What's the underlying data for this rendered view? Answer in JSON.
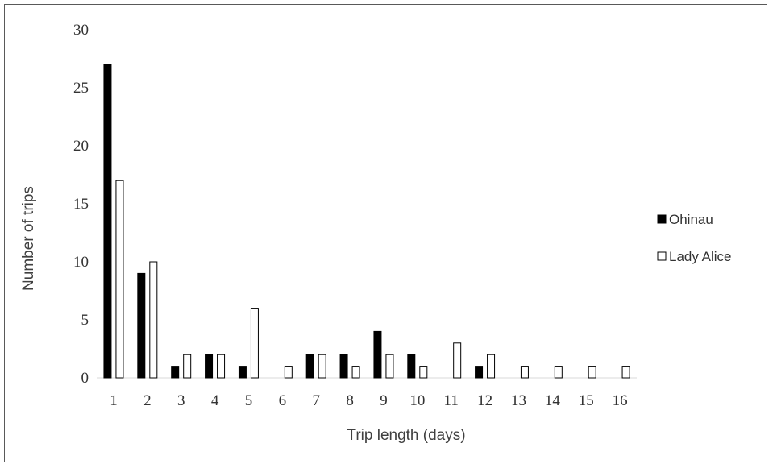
{
  "chart_data": {
    "type": "bar",
    "title": "",
    "xlabel": "Trip length (days)",
    "ylabel": "Number of trips",
    "categories": [
      "1",
      "2",
      "3",
      "4",
      "5",
      "6",
      "7",
      "8",
      "9",
      "10",
      "11",
      "12",
      "13",
      "14",
      "15",
      "16"
    ],
    "ylim": [
      0,
      30
    ],
    "yticks": [
      0,
      5,
      10,
      15,
      20,
      25,
      30
    ],
    "grid": false,
    "legend_position": "right",
    "series": [
      {
        "name": "Ohinau",
        "fill": "#000000",
        "stroke": "#000000",
        "values": [
          27,
          9,
          1,
          2,
          1,
          0,
          2,
          2,
          4,
          2,
          0,
          1,
          0,
          0,
          0,
          0
        ]
      },
      {
        "name": "Lady Alice",
        "fill": "#ffffff",
        "stroke": "#000000",
        "values": [
          17,
          10,
          2,
          2,
          6,
          1,
          2,
          1,
          2,
          1,
          3,
          2,
          1,
          1,
          1,
          1
        ]
      }
    ]
  }
}
